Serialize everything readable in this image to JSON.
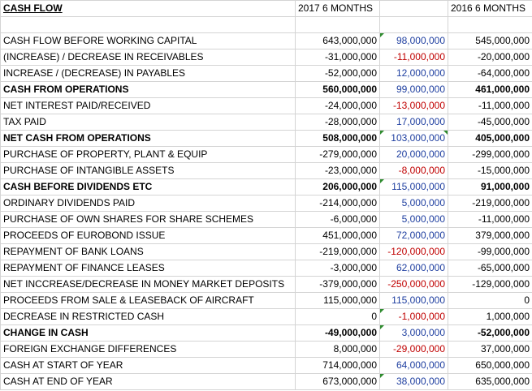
{
  "header": {
    "title": "CASH FLOW",
    "col_2017": "2017 6 MONTHS",
    "col_2016": "2016 6 MONTHS"
  },
  "rows": [
    {
      "label": "CASH FLOW BEFORE WORKING CAPITAL",
      "v2017": "643,000,000",
      "mid": "98,000,000",
      "v2016": "545,000,000"
    },
    {
      "label": "(INCREASE) / DECREASE IN RECEIVABLES",
      "v2017": "-31,000,000",
      "mid": "-11,000,000",
      "v2016": "-20,000,000"
    },
    {
      "label": "INCREASE / (DECREASE) IN PAYABLES",
      "v2017": "-52,000,000",
      "mid": "12,000,000",
      "v2016": "-64,000,000"
    },
    {
      "label": "CASH FROM OPERATIONS",
      "v2017": "560,000,000",
      "mid": "99,000,000",
      "v2016": "461,000,000"
    },
    {
      "label": "NET INTEREST PAID/RECEIVED",
      "v2017": "-24,000,000",
      "mid": "-13,000,000",
      "v2016": "-11,000,000"
    },
    {
      "label": "TAX PAID",
      "v2017": "-28,000,000",
      "mid": "17,000,000",
      "v2016": "-45,000,000"
    },
    {
      "label": "NET CASH FROM OPERATIONS",
      "v2017": "508,000,000",
      "mid": "103,000,000",
      "v2016": "405,000,000"
    },
    {
      "label": "PURCHASE OF PROPERTY, PLANT & EQUIP",
      "v2017": "-279,000,000",
      "mid": "20,000,000",
      "v2016": "-299,000,000"
    },
    {
      "label": "PURCHASE OF INTANGIBLE ASSETS",
      "v2017": "-23,000,000",
      "mid": "-8,000,000",
      "v2016": "-15,000,000"
    },
    {
      "label": "CASH BEFORE DIVIDENDS ETC",
      "v2017": "206,000,000",
      "mid": "115,000,000",
      "v2016": "91,000,000"
    },
    {
      "label": "ORDINARY DIVIDENDS PAID",
      "v2017": "-214,000,000",
      "mid": "5,000,000",
      "v2016": "-219,000,000"
    },
    {
      "label": "PURCHASE OF OWN SHARES FOR SHARE SCHEMES",
      "v2017": "-6,000,000",
      "mid": "5,000,000",
      "v2016": "-11,000,000"
    },
    {
      "label": "PROCEEDS OF EUROBOND ISSUE",
      "v2017": "451,000,000",
      "mid": "72,000,000",
      "v2016": "379,000,000"
    },
    {
      "label": "REPAYMENT OF BANK LOANS",
      "v2017": "-219,000,000",
      "mid": "-120,000,000",
      "v2016": "-99,000,000"
    },
    {
      "label": "REPAYMENT OF FINANCE LEASES",
      "v2017": "-3,000,000",
      "mid": "62,000,000",
      "v2016": "-65,000,000"
    },
    {
      "label": "NET INCCREASE/DECREASE IN MONEY MARKET DEPOSITS",
      "v2017": "-379,000,000",
      "mid": "-250,000,000",
      "v2016": "-129,000,000"
    },
    {
      "label": "PROCEEDS FROM SALE & LEASEBACK OF AIRCRAFT",
      "v2017": "115,000,000",
      "mid": "115,000,000",
      "v2016": "0"
    },
    {
      "label": "DECREASE IN RESTRICTED CASH",
      "v2017": "0",
      "mid": "-1,000,000",
      "v2016": "1,000,000"
    },
    {
      "label": "CHANGE IN CASH",
      "v2017": "-49,000,000",
      "mid": "3,000,000",
      "v2016": "-52,000,000"
    },
    {
      "label": "FOREIGN EXCHANGE DIFFERENCES",
      "v2017": "8,000,000",
      "mid": "-29,000,000",
      "v2016": "37,000,000"
    },
    {
      "label": "CASH AT START OF YEAR",
      "v2017": "714,000,000",
      "mid": "64,000,000",
      "v2016": "650,000,000"
    },
    {
      "label": "CASH AT END OF YEAR",
      "v2017": "673,000,000",
      "mid": "38,000,000",
      "v2016": "635,000,000"
    }
  ],
  "colors": {
    "positive_diff": "#1f3fa0",
    "negative_diff": "#c00000",
    "grid": "#d4d4d4",
    "comment_marker": "#2e8b2e"
  }
}
